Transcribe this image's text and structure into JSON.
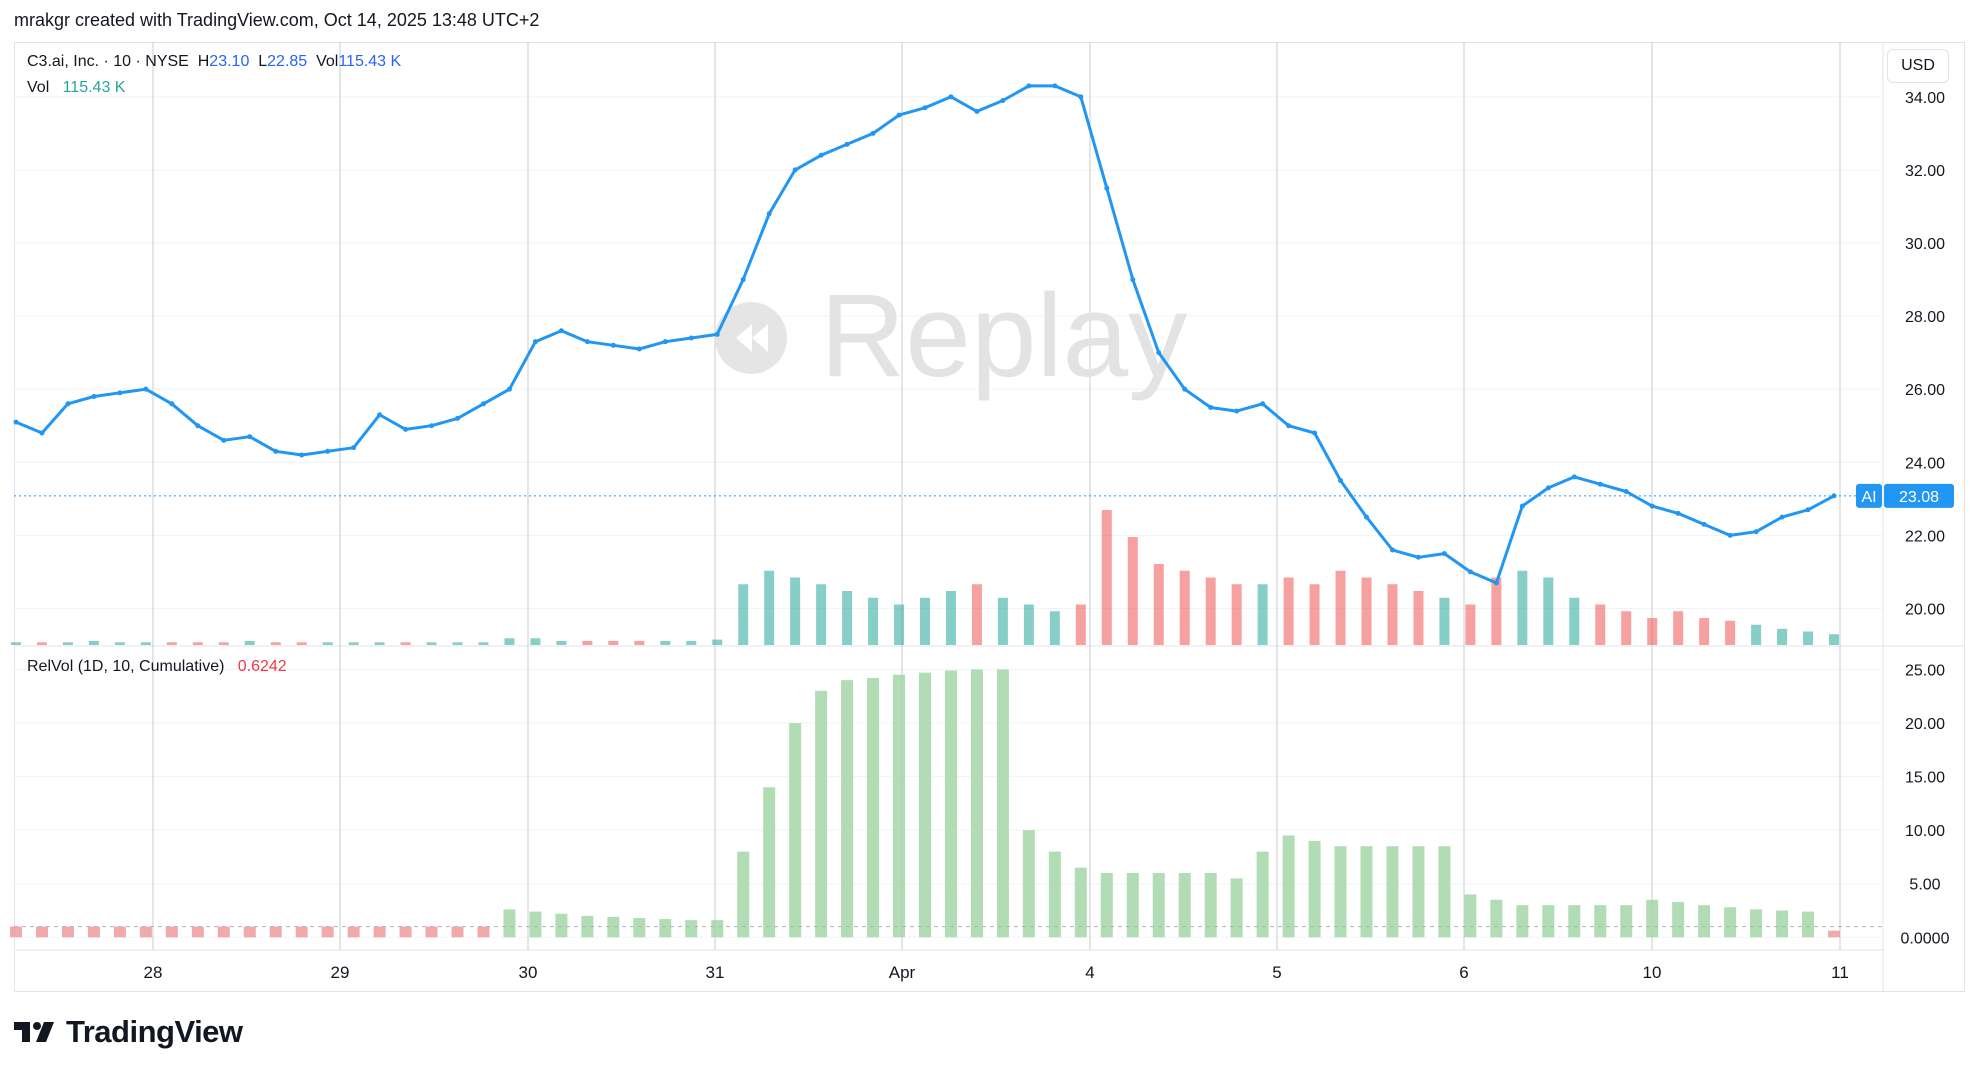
{
  "header": {
    "attribution": "mrakgr created with TradingView.com, Oct 14, 2025 13:48 UTC+2"
  },
  "legend": {
    "symbol": "C3.ai, Inc. · 10 · NYSE",
    "h_label": "H",
    "h_value": "23.10",
    "l_label": "L",
    "l_value": "22.85",
    "vol_label": "Vol",
    "vol_value": "115.43 K",
    "vol_row_label": "Vol",
    "vol_row_value": "115.43 K",
    "relvol_label": "RelVol (1D, 10, Cumulative)",
    "relvol_value": "0.6242"
  },
  "currency": "USD",
  "watermark": "Replay",
  "price_tag": {
    "symbol": "AI",
    "value": "23.08"
  },
  "footer": {
    "brand": "TradingView"
  },
  "colors": {
    "price": "#2196f3",
    "vol_up": "#26a69a",
    "vol_down": "#ef5350",
    "relvol_high": "#a5d6a7",
    "relvol_low": "#ef9a9a",
    "grid": "#f0f3fa",
    "session_line": "#c8cbd2"
  },
  "chart_data": [
    {
      "type": "line",
      "panel": "price",
      "series": [
        {
          "name": "C3.ai, Inc.",
          "y": [
            25.1,
            24.8,
            25.6,
            25.8,
            25.9,
            26.0,
            25.6,
            25.0,
            24.6,
            24.7,
            24.3,
            24.2,
            24.3,
            24.4,
            25.3,
            24.9,
            25.0,
            25.2,
            25.6,
            26.0,
            27.3,
            27.6,
            27.3,
            27.2,
            27.1,
            27.3,
            27.4,
            27.5,
            29.0,
            30.8,
            32.0,
            32.4,
            32.7,
            33.0,
            33.5,
            33.7,
            34.0,
            33.6,
            33.9,
            34.3,
            34.3,
            34.0,
            31.5,
            29.0,
            27.0,
            26.0,
            25.5,
            25.4,
            25.6,
            25.0,
            24.8,
            23.5,
            22.5,
            21.6,
            21.4,
            21.5,
            21.0,
            20.7,
            22.8,
            23.3,
            23.6,
            23.4,
            23.2,
            22.8,
            22.6,
            22.3,
            22.0,
            22.1,
            22.5,
            22.7,
            23.08
          ]
        }
      ],
      "x_labels": [
        "28",
        "29",
        "30",
        "31",
        "Apr",
        "4",
        "5",
        "6",
        "10",
        "11"
      ],
      "ylabel": "",
      "yticks": [
        "20.00",
        "22.00",
        "24.00",
        "26.00",
        "28.00",
        "30.00",
        "32.00",
        "34.00"
      ],
      "ylim": [
        19.0,
        35.5
      ],
      "last_value": 23.08
    },
    {
      "type": "bar",
      "panel": "volume",
      "series": [
        {
          "name": "Vol",
          "values": [
            0.02,
            0.02,
            0.02,
            0.03,
            0.02,
            0.02,
            0.02,
            0.02,
            0.02,
            0.03,
            0.02,
            0.02,
            0.02,
            0.02,
            0.02,
            0.02,
            0.02,
            0.02,
            0.02,
            0.05,
            0.05,
            0.03,
            0.03,
            0.03,
            0.03,
            0.03,
            0.03,
            0.04,
            0.45,
            0.55,
            0.5,
            0.45,
            0.4,
            0.35,
            0.3,
            0.35,
            0.4,
            0.45,
            0.35,
            0.3,
            0.25,
            0.3,
            1.0,
            0.8,
            0.6,
            0.55,
            0.5,
            0.45,
            0.45,
            0.5,
            0.45,
            0.55,
            0.5,
            0.45,
            0.4,
            0.35,
            0.3,
            0.5,
            0.55,
            0.5,
            0.35,
            0.3,
            0.25,
            0.2,
            0.25,
            0.2,
            0.18,
            0.15,
            0.12,
            0.1,
            0.08
          ]
        }
      ],
      "ylim": [
        0,
        1.0
      ]
    },
    {
      "type": "bar",
      "panel": "relvol",
      "series": [
        {
          "name": "RelVol (1D, 10, Cumulative)",
          "values": [
            1.0,
            1.0,
            1.0,
            1.0,
            1.0,
            1.0,
            1.0,
            1.0,
            1.0,
            1.0,
            1.0,
            1.0,
            1.0,
            1.0,
            1.0,
            1.0,
            1.0,
            1.0,
            1.0,
            2.6,
            2.4,
            2.2,
            2.0,
            1.9,
            1.8,
            1.7,
            1.6,
            1.6,
            8.0,
            14.0,
            20.0,
            23.0,
            24.0,
            24.2,
            24.5,
            24.7,
            24.9,
            25.0,
            25.0,
            10.0,
            8.0,
            6.5,
            6.0,
            6.0,
            6.0,
            6.0,
            6.0,
            5.5,
            8.0,
            9.5,
            9.0,
            8.5,
            8.5,
            8.5,
            8.5,
            8.5,
            4.0,
            3.5,
            3.0,
            3.0,
            3.0,
            3.0,
            3.0,
            3.5,
            3.3,
            3.0,
            2.8,
            2.6,
            2.5,
            2.4,
            0.6242
          ]
        }
      ],
      "yticks": [
        "0.0000",
        "5.00",
        "10.00",
        "15.00",
        "20.00",
        "25.00"
      ],
      "ylim": [
        -1.0,
        27.0
      ],
      "last_value": 0.6242
    }
  ]
}
